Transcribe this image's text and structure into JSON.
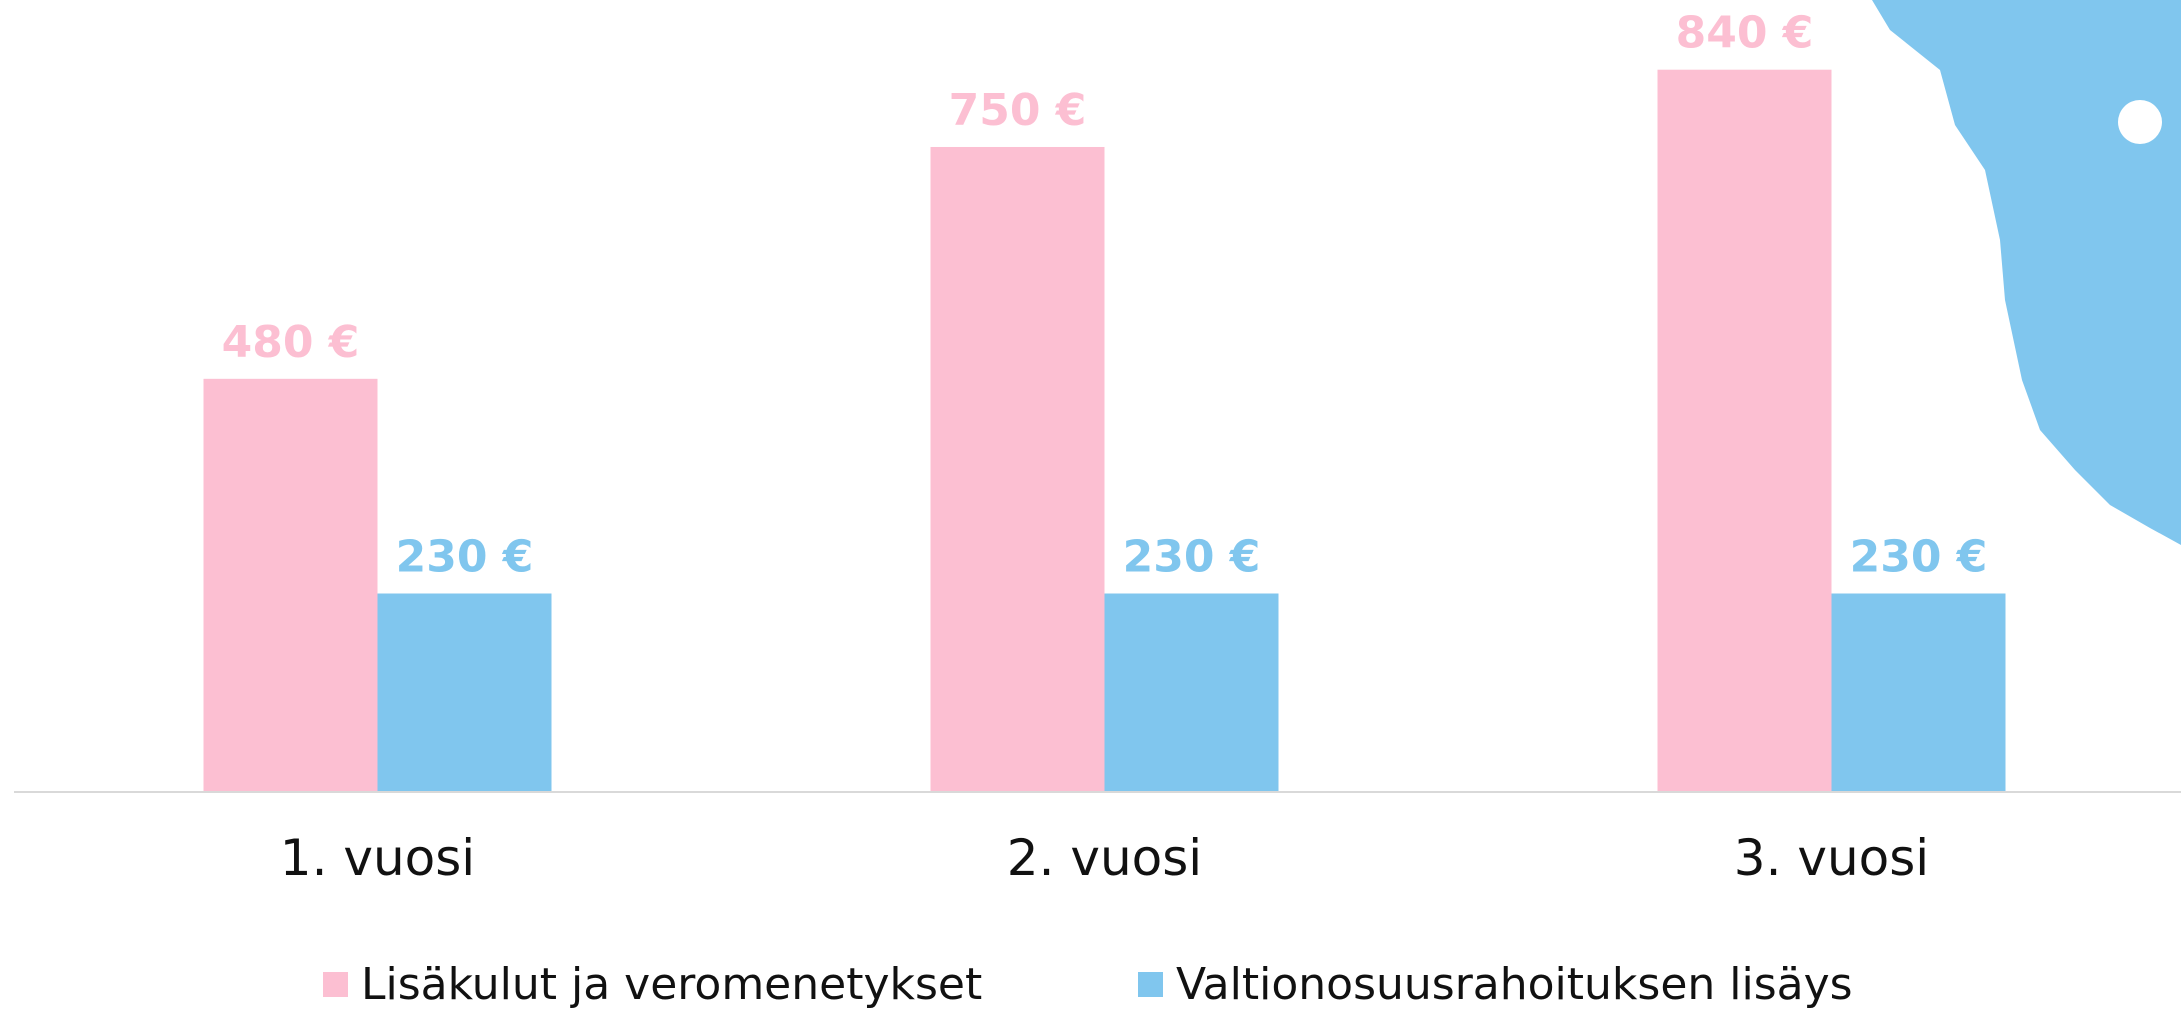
{
  "chart_data": {
    "type": "bar",
    "categories": [
      "1. vuosi",
      "2. vuosi",
      "3. vuosi"
    ],
    "series": [
      {
        "name": "Lisäkulut ja veromenetykset",
        "color": "#fcbfd2",
        "values": [
          480,
          750,
          840
        ],
        "value_labels": [
          "480 €",
          "750 €",
          "840 €"
        ]
      },
      {
        "name": "Valtionosuusrahoituksen lisäys",
        "color": "#80c6ee",
        "values": [
          230,
          230,
          230
        ],
        "value_labels": [
          "230 €",
          "230 €",
          "230 €"
        ]
      }
    ],
    "ylim": [
      0,
      920
    ]
  }
}
